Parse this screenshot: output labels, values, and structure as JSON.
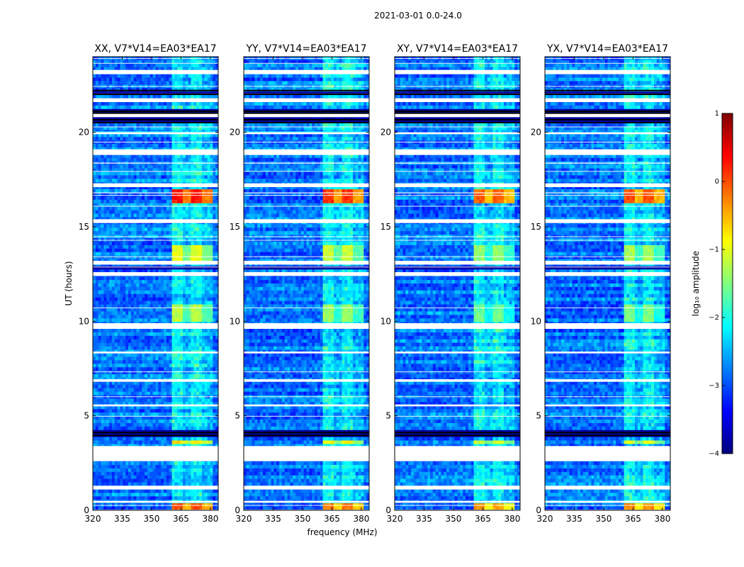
{
  "figure": {
    "suptitle": "2021-03-01 0.0-24.0",
    "ylabel": "UT (hours)",
    "xlabel": "frequency (MHz)"
  },
  "chart_data": {
    "type": "heatmap",
    "x": {
      "label": "frequency (MHz)",
      "lim": [
        320,
        384
      ],
      "ticks": [
        320,
        335,
        350,
        365,
        380
      ]
    },
    "y": {
      "label": "UT (hours)",
      "lim": [
        0,
        24
      ],
      "ticks": [
        0,
        5,
        10,
        15,
        20
      ]
    },
    "colorbar": {
      "label": "log₁₀ amplitude",
      "range": [
        -4,
        1
      ],
      "ticks": [
        1,
        0,
        -1,
        -2,
        -3,
        -4
      ],
      "tick_labels": [
        "1",
        "0",
        "−1",
        "−2",
        "−3",
        "−4"
      ],
      "colormap": [
        "#00007f",
        "#0000ff",
        "#0080ff",
        "#00ffff",
        "#80ff80",
        "#ffff00",
        "#ff8000",
        "#ff0000",
        "#7f0000"
      ]
    },
    "panels": [
      {
        "title": "XX, V7*V14=EA03*EA17",
        "band_hi": -1.1
      },
      {
        "title": "YY, V7*V14=EA03*EA17",
        "band_hi": -1.3
      },
      {
        "title": "XY, V7*V14=EA03*EA17",
        "band_hi": -1.6
      },
      {
        "title": "YX, V7*V14=EA03*EA17",
        "band_hi": -1.5
      }
    ],
    "background_level": -2.8,
    "rfi_band_MHz": [
      360,
      381
    ],
    "flagged_hours": [
      [
        2.6,
        3.4
      ],
      [
        9.6,
        9.9
      ],
      [
        12.4,
        12.6
      ],
      [
        13.0,
        13.2
      ],
      [
        15.2,
        15.4
      ],
      [
        17.1,
        17.3
      ],
      [
        18.8,
        19.1
      ],
      [
        19.9,
        20.0
      ],
      [
        20.8,
        21.0
      ],
      [
        21.6,
        21.8
      ],
      [
        23.1,
        23.3
      ],
      [
        1.1,
        1.3
      ],
      [
        0.4,
        0.5
      ],
      [
        5.5,
        5.6
      ],
      [
        6.8,
        6.9
      ],
      [
        8.3,
        8.4
      ]
    ],
    "dark_rows_hours": [
      [
        20.5,
        20.8
      ],
      [
        21.0,
        21.2
      ],
      [
        3.8,
        4.2
      ],
      [
        12.8,
        13.0
      ],
      [
        22.0,
        22.2
      ]
    ],
    "bright_events": [
      {
        "hours": [
          16.3,
          17.0
        ],
        "level": 0.0
      },
      {
        "hours": [
          13.2,
          14.0
        ],
        "level": -1.3
      },
      {
        "hours": [
          10.0,
          10.9
        ],
        "level": -1.5
      },
      {
        "hours": [
          0.0,
          0.3
        ],
        "level": -0.3
      },
      {
        "hours": [
          3.5,
          3.7
        ],
        "level": -1.0
      }
    ]
  }
}
